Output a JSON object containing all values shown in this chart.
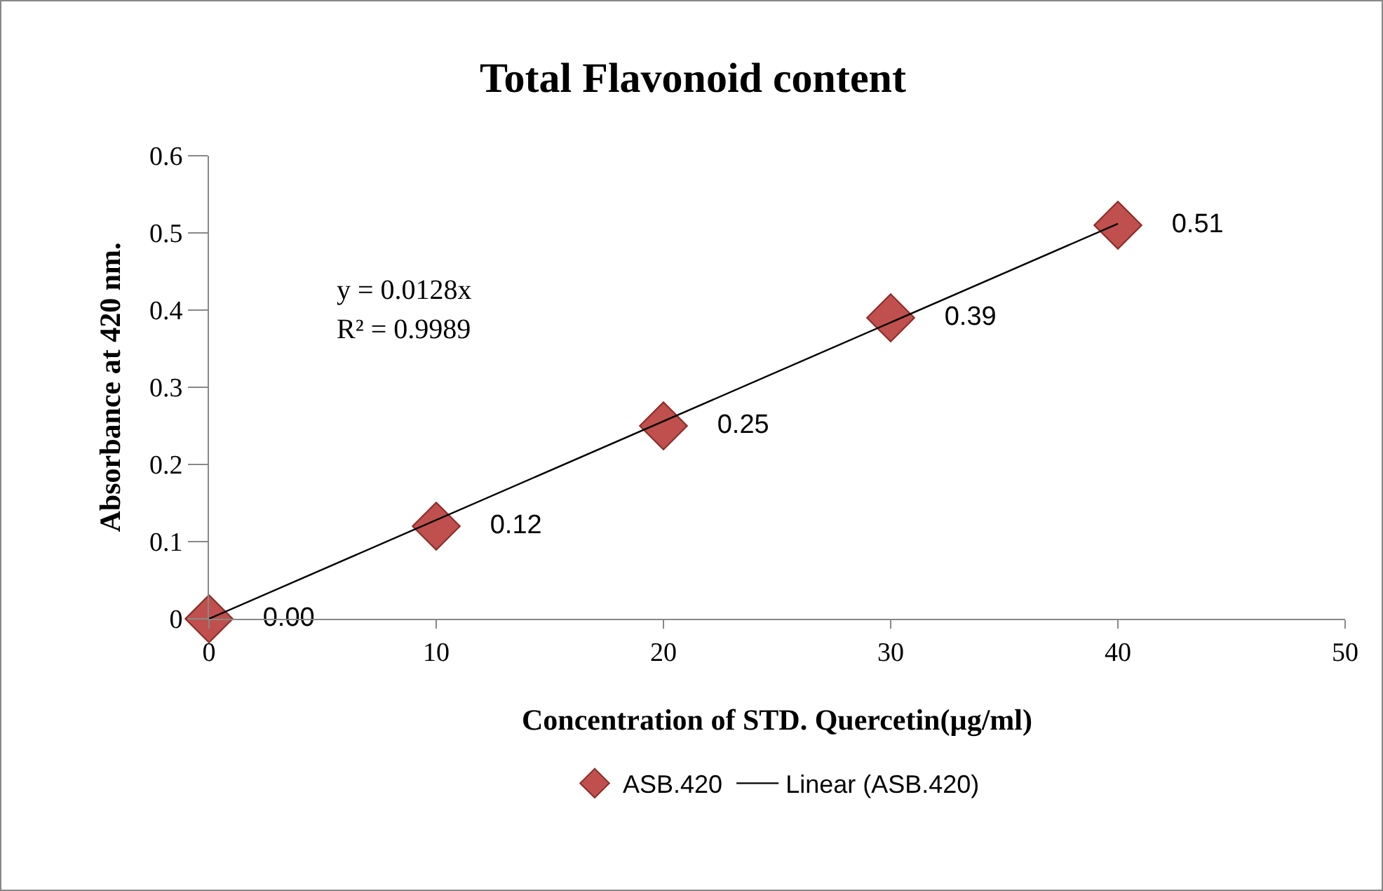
{
  "chart_data": {
    "type": "scatter",
    "title": "Total Flavonoid content",
    "xlabel": "Concentration of STD. Quercetin(µg/ml)",
    "ylabel": "Absorbance at 420 nm.",
    "x": [
      0,
      10,
      20,
      30,
      40
    ],
    "series": [
      {
        "name": "ASB.420",
        "color": "#c0504d",
        "marker": "diamond",
        "values": [
          0,
          0.12,
          0.25,
          0.39,
          0.51
        ],
        "value_labels": [
          "0.00",
          "0.12",
          "0.25",
          "0.39",
          "0.51"
        ]
      },
      {
        "name": "Linear (ASB.420)",
        "type": "line",
        "marker": "none",
        "color": "#000000",
        "x": [
          0,
          40
        ],
        "values": [
          0,
          0.512
        ]
      }
    ],
    "annotations": [
      "y = 0.0128x",
      "R² = 0.9989"
    ],
    "xlim": [
      0,
      50
    ],
    "xticks": [
      0,
      10,
      20,
      30,
      40,
      50
    ],
    "ylim": [
      0,
      0.6
    ],
    "yticks": [
      0,
      0.1,
      0.2,
      0.3,
      0.4,
      0.5,
      0.6
    ],
    "grid": false,
    "legend": "bottom"
  }
}
